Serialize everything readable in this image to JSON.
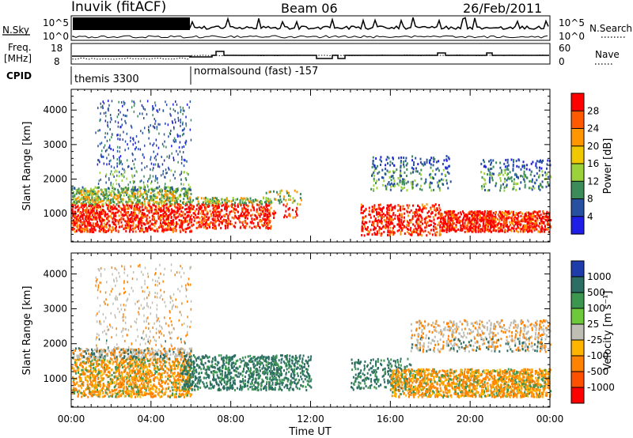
{
  "header": {
    "station": "Inuvik (fitACF)",
    "beam": "Beam 06",
    "date": "26/Feb/2011"
  },
  "nsky_panel": {
    "left_label": "N.Sky",
    "right_label": "N.Search",
    "tick_top": "10^5",
    "tick_bottom": "10^0",
    "right_tick_top": "10^5",
    "right_tick_bottom": "10^0"
  },
  "freq_panel": {
    "left_label_1": "Freq.",
    "left_label_2": "[MHz]",
    "tick_18": "18",
    "tick_8": "8",
    "right_label": "Nave",
    "right_tick_60": "60",
    "right_tick_0": "0"
  },
  "cpid_panel": {
    "label": "CPID",
    "modes": [
      {
        "name": "themis 3300",
        "start_hour": 0
      },
      {
        "name": "normalsound (fast) -157",
        "start_hour": 6
      }
    ]
  },
  "chart_data": [
    {
      "type": "heatmap",
      "name": "power",
      "ylabel": "Slant Range [km]",
      "ylim": [
        180,
        4600
      ],
      "yticks": [
        1000,
        2000,
        3000,
        4000
      ],
      "xlim": [
        "00:00",
        "24:00"
      ],
      "colorbar": {
        "label": "Power [dB]",
        "ticks": [
          "28",
          "24",
          "20",
          "16",
          "12",
          "8",
          "4"
        ],
        "colors": [
          "#ff0000",
          "#ff5a00",
          "#ff9600",
          "#f0c800",
          "#9bd23c",
          "#3c8c5a",
          "#2850a0",
          "#1e1ee6"
        ]
      }
    },
    {
      "type": "heatmap",
      "name": "velocity",
      "ylabel": "Slant Range [km]",
      "ylim": [
        180,
        4600
      ],
      "yticks": [
        1000,
        2000,
        3000,
        4000
      ],
      "xlim": [
        "00:00",
        "24:00"
      ],
      "xlabel": "Time UT",
      "xticks": [
        "00:00",
        "04:00",
        "08:00",
        "12:00",
        "16:00",
        "20:00",
        "00:00"
      ],
      "colorbar": {
        "label": "Velocity [m s⁻¹]",
        "ticks": [
          "1000",
          "500",
          "100",
          "25",
          "-25",
          "-100",
          "-500",
          "-1000"
        ],
        "colors": [
          "#1e3caa",
          "#2d6e64",
          "#3c9650",
          "#6ec83c",
          "#bebeb4",
          "#ffb400",
          "#ff8200",
          "#ff5000",
          "#ff0000"
        ]
      }
    }
  ]
}
